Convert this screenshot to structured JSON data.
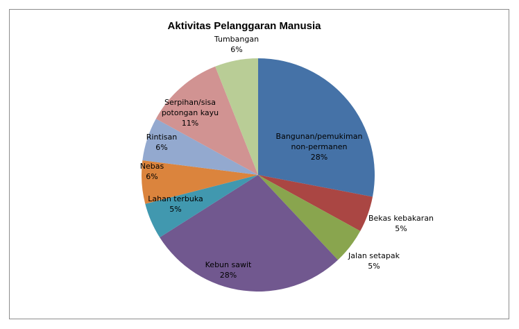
{
  "chart_data": {
    "type": "pie",
    "title": "Aktivitas Pelanggaran Manusia",
    "start_angle_deg": 0,
    "direction": "clockwise",
    "slices": [
      {
        "lines": [
          "Bangunan/pemukiman",
          "non-permanen"
        ],
        "label": "Bangunan/pemukiman non-permanen",
        "value": 28,
        "value_label": "28%",
        "color": "#4572A7"
      },
      {
        "lines": [
          "Bekas kebakaran"
        ],
        "label": "Bekas kebakaran",
        "value": 5,
        "value_label": "5%",
        "color": "#AA4643"
      },
      {
        "lines": [
          "Jalan setapak"
        ],
        "label": "Jalan setapak",
        "value": 5,
        "value_label": "5%",
        "color": "#89A54E"
      },
      {
        "lines": [
          "Kebun sawit"
        ],
        "label": "Kebun sawit",
        "value": 28,
        "value_label": "28%",
        "color": "#71588F"
      },
      {
        "lines": [
          "Lahan terbuka"
        ],
        "label": "Lahan terbuka",
        "value": 5,
        "value_label": "5%",
        "color": "#4198AF"
      },
      {
        "lines": [
          "Nebas"
        ],
        "label": "Nebas",
        "value": 6,
        "value_label": "6%",
        "color": "#DB843D"
      },
      {
        "lines": [
          "Rintisan"
        ],
        "label": "Rintisan",
        "value": 6,
        "value_label": "6%",
        "color": "#93A9CF"
      },
      {
        "lines": [
          "Serpihan/sisa",
          "potongan kayu"
        ],
        "label": "Serpihan/sisa potongan kayu",
        "value": 11,
        "value_label": "11%",
        "color": "#D19392"
      },
      {
        "lines": [
          "Tumbangan"
        ],
        "label": "Tumbangan",
        "value": 6,
        "value_label": "6%",
        "color": "#B9CD96"
      }
    ]
  }
}
